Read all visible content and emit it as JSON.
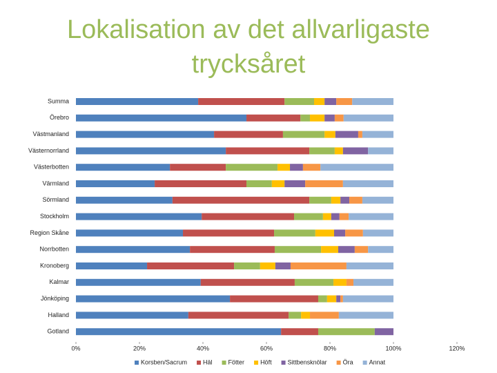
{
  "chart_data": {
    "type": "stacked-barh",
    "title": "Lokalisation av det allvarligaste trycksåret",
    "categories": [
      "Summa",
      "Örebro",
      "Västmanland",
      "Västernorrland",
      "Västerbotten",
      "Värmland",
      "Sörmland",
      "Stockholm",
      "Region Skåne",
      "Norrbotten",
      "Kronoberg",
      "Kalmar",
      "Jönköping",
      "Halland",
      "Gotland"
    ],
    "series": [
      {
        "name": "Korsben/Sacrum",
        "color": "#4F81BD",
        "values": [
          38.5,
          53.7,
          43.5,
          47.2,
          29.6,
          24.8,
          30.4,
          39.6,
          33.7,
          35.9,
          22.4,
          39.3,
          48.5,
          35.4,
          64.6
        ]
      },
      {
        "name": "Häl",
        "color": "#C0504D",
        "values": [
          27.2,
          17.0,
          21.7,
          26.3,
          17.6,
          28.9,
          43.1,
          29.1,
          28.7,
          26.7,
          27.4,
          29.6,
          27.8,
          31.6,
          11.7
        ]
      },
      {
        "name": "Fötter",
        "color": "#9BBB59",
        "values": [
          9.3,
          3.0,
          13.1,
          8.0,
          16.3,
          8.0,
          6.9,
          9.1,
          13.0,
          14.6,
          8.2,
          12.2,
          2.8,
          3.9,
          17.8
        ]
      },
      {
        "name": "Höft",
        "color": "#FFC000",
        "values": [
          3.3,
          4.6,
          3.4,
          2.6,
          3.9,
          4.0,
          2.9,
          2.6,
          5.9,
          5.4,
          4.8,
          4.1,
          2.9,
          2.8,
          0
        ]
      },
      {
        "name": "Sittbensknölar",
        "color": "#8064A2",
        "values": [
          3.7,
          3.2,
          7.2,
          7.9,
          4.1,
          6.5,
          2.8,
          2.6,
          3.5,
          5.2,
          4.8,
          0,
          1.3,
          0,
          5.9
        ]
      },
      {
        "name": "Öra",
        "color": "#F79646",
        "values": [
          5.0,
          2.8,
          1.3,
          0,
          5.5,
          11.9,
          4.1,
          2.9,
          5.6,
          4.2,
          17.6,
          2.2,
          0.8,
          9.1,
          0
        ]
      },
      {
        "name": "Annat",
        "color": "#95B3D7",
        "values": [
          13.0,
          15.7,
          9.8,
          8.0,
          23.0,
          15.9,
          9.8,
          14.1,
          9.6,
          8.0,
          14.8,
          12.6,
          15.9,
          17.2,
          0
        ]
      }
    ],
    "xlim": [
      0,
      120
    ],
    "xticks": [
      {
        "value": 0,
        "label": "0%"
      },
      {
        "value": 20,
        "label": "20%"
      },
      {
        "value": 40,
        "label": "40%"
      },
      {
        "value": 60,
        "label": "60%"
      },
      {
        "value": 80,
        "label": "80%"
      },
      {
        "value": 100,
        "label": "100%"
      },
      {
        "value": 120,
        "label": "120%"
      }
    ],
    "legend": "bottom"
  }
}
